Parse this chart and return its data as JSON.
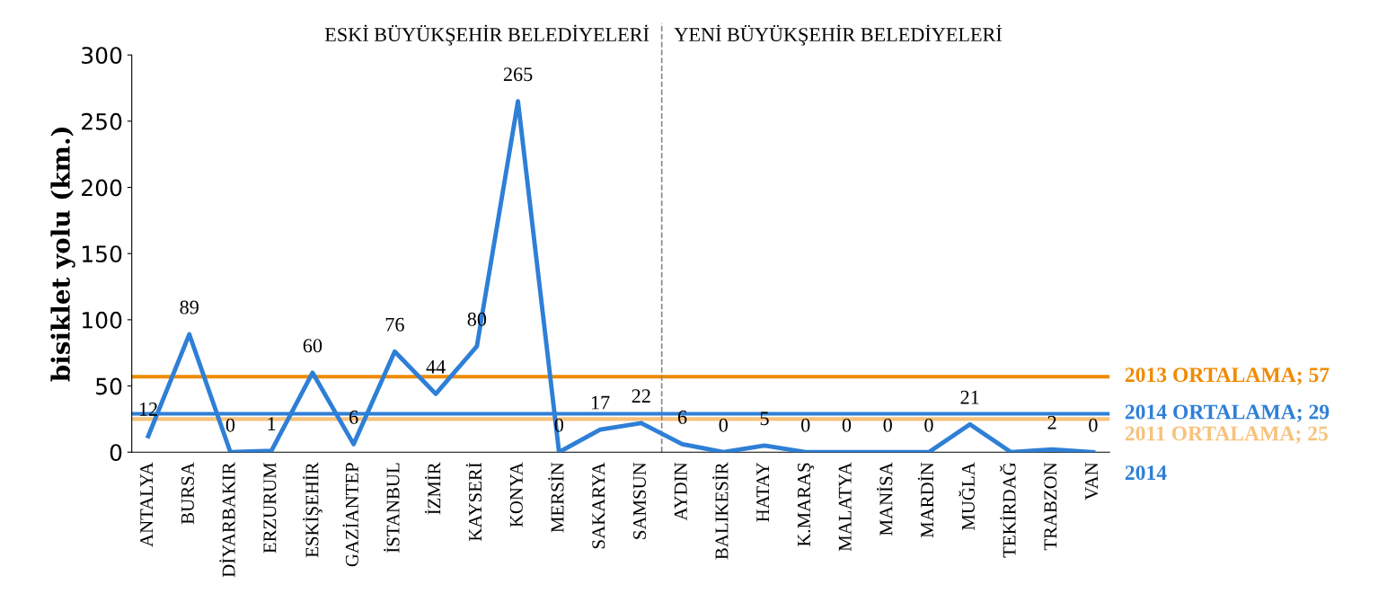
{
  "chart_data": {
    "type": "line",
    "ylabel": "bisiklet yolu (km.)",
    "categories": [
      "ANTALYA",
      "BURSA",
      "DİYARBAKIR",
      "ERZURUM",
      "ESKİŞEHİR",
      "GAZİANTEP",
      "İSTANBUL",
      "İZMİR",
      "KAYSERİ",
      "KONYA",
      "MERSİN",
      "SAKARYA",
      "SAMSUN",
      "AYDIN",
      "BALIKESİR",
      "HATAY",
      "K.MARAŞ",
      "MALATYA",
      "MANİSA",
      "MARDİN",
      "MUĞLA",
      "TEKİRDAĞ",
      "TRABZON",
      "VAN"
    ],
    "series": [
      {
        "name": "2014",
        "color": "#2e7fd6",
        "values": [
          12,
          89,
          0,
          1,
          60,
          6,
          76,
          44,
          80,
          265,
          0,
          17,
          22,
          6,
          0,
          5,
          0,
          0,
          0,
          0,
          21,
          0,
          2,
          0
        ],
        "value_labels": [
          "12",
          "89",
          "0",
          "1",
          "60",
          "6",
          "76",
          "44",
          "80",
          "265",
          "0",
          "17",
          "22",
          "6",
          "0",
          "5",
          "0",
          "0",
          "0",
          "0",
          "21",
          null,
          "2",
          "0"
        ]
      }
    ],
    "ylim": [
      0,
      300
    ],
    "yticks": [
      0,
      50,
      100,
      150,
      200,
      250,
      300
    ],
    "grid": false,
    "marker": "none",
    "line_style": "solid",
    "legend": false,
    "ref_lines": [
      {
        "axis": "y",
        "value": 57,
        "label": "2013 ORTALAMA; 57",
        "color": "#f08a00"
      },
      {
        "axis": "y",
        "value": 29,
        "label": "2014 ORTALAMA; 29",
        "color": "#2e7fd6"
      },
      {
        "axis": "y",
        "value": 25,
        "label": "2011 ORTALAMA; 25",
        "color": "#f7c27c"
      }
    ],
    "annotations": [
      "ESKİ BÜYÜKŞEHİR BELEDİYELERİ",
      "YENİ BÜYÜKŞEHİR BELEDİYELERİ"
    ]
  }
}
